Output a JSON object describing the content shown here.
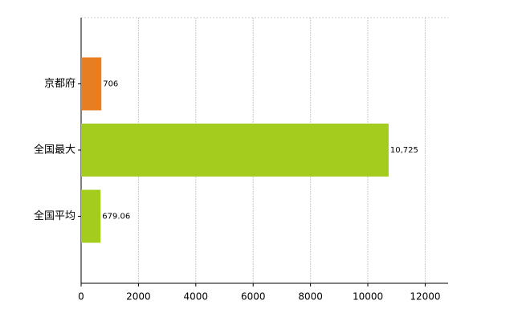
{
  "chart_data": {
    "type": "bar",
    "orientation": "horizontal",
    "categories": [
      "京都府",
      "全国最大",
      "全国平均"
    ],
    "values": [
      706,
      10725,
      679.06
    ],
    "value_labels": [
      "706",
      "10,725",
      "679.06"
    ],
    "colors": [
      "#e87e22",
      "#a3cc1f",
      "#a3cc1f"
    ],
    "xlim": [
      0,
      12800
    ],
    "xticks": [
      0,
      2000,
      4000,
      6000,
      8000,
      10000,
      12000
    ],
    "grid": true
  }
}
